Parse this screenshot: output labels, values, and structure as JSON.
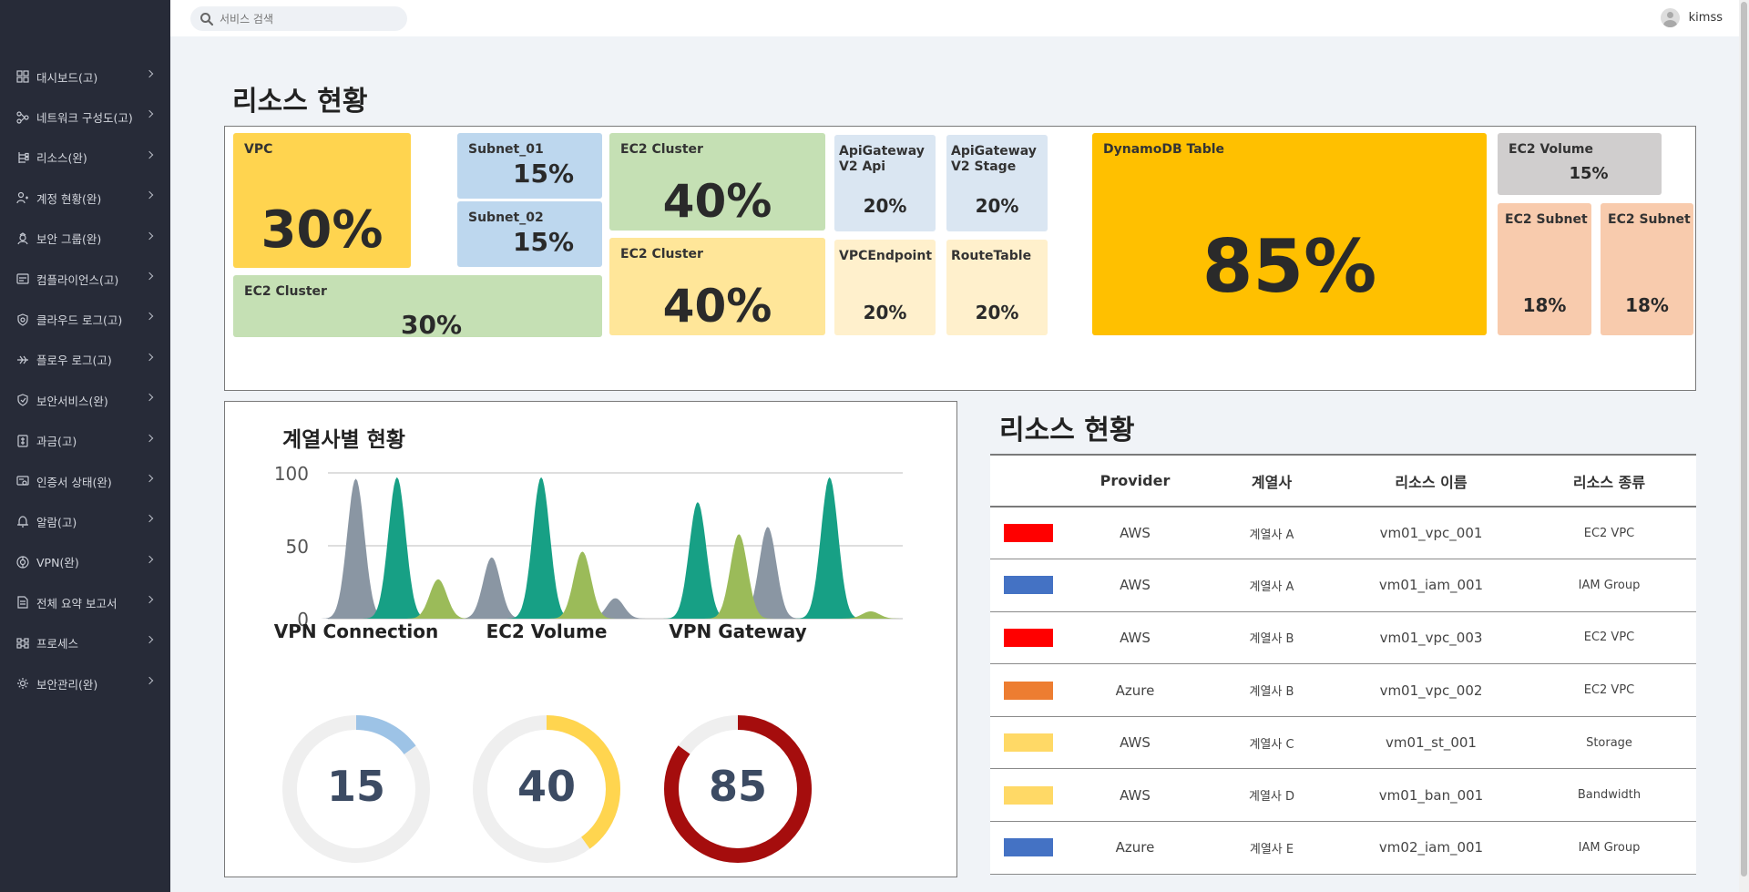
{
  "search": {
    "placeholder": "서비스 검색"
  },
  "user": {
    "name": "kimss"
  },
  "sidebar": {
    "items": [
      {
        "label": "대시보드(고)",
        "icon": "dashboard-icon"
      },
      {
        "label": "네트워크 구성도(고)",
        "icon": "network-icon"
      },
      {
        "label": "리소스(완)",
        "icon": "resource-tree-icon"
      },
      {
        "label": "계정 현황(완)",
        "icon": "users-icon"
      },
      {
        "label": "보안 그룹(완)",
        "icon": "security-group-icon"
      },
      {
        "label": "컴플라이언스(고)",
        "icon": "compliance-icon"
      },
      {
        "label": "클라우드 로그(고)",
        "icon": "cloud-log-icon"
      },
      {
        "label": "플로우 로그(고)",
        "icon": "flow-log-icon"
      },
      {
        "label": "보안서비스(완)",
        "icon": "shield-icon"
      },
      {
        "label": "과금(고)",
        "icon": "billing-icon"
      },
      {
        "label": "인증서 상태(완)",
        "icon": "certificate-icon"
      },
      {
        "label": "알람(고)",
        "icon": "alarm-icon"
      },
      {
        "label": "VPN(완)",
        "icon": "vpn-icon"
      },
      {
        "label": "전체 요약 보고서",
        "icon": "report-icon"
      },
      {
        "label": "프로세스",
        "icon": "process-icon"
      },
      {
        "label": "보안관리(완)",
        "icon": "gear-icon"
      }
    ]
  },
  "treemap": {
    "title": "리소스 현황",
    "tiles": [
      {
        "label": "VPC",
        "value": "30%",
        "color": "#ffd44f"
      },
      {
        "label": "Subnet_01",
        "value": "15%",
        "color": "#bdd7ee"
      },
      {
        "label": "Subnet_02",
        "value": "15%",
        "color": "#bdd7ee"
      },
      {
        "label": "EC2 Cluster",
        "value": "30%",
        "color": "#c5e0b4"
      },
      {
        "label": "EC2 Cluster",
        "value": "40%",
        "color": "#c5e0b4"
      },
      {
        "label": "EC2 Cluster",
        "value": "40%",
        "color": "#ffe699"
      },
      {
        "label": "ApiGateway V2 Api",
        "value": "20%",
        "color": "#dae6f2"
      },
      {
        "label": "ApiGateway V2 Stage",
        "value": "20%",
        "color": "#dae6f2"
      },
      {
        "label": "VPCEndpoint",
        "value": "20%",
        "color": "#fff0cc"
      },
      {
        "label": "RouteTable",
        "value": "20%",
        "color": "#fff0cc"
      },
      {
        "label": "DynamoDB Table",
        "value": "85%",
        "color": "#ffc000"
      },
      {
        "label": "EC2 Volume",
        "value": "15%",
        "color": "#d0cece"
      },
      {
        "label": "EC2 Subnet",
        "value": "18%",
        "color": "#f8cbad"
      },
      {
        "label": "EC2 Subnet",
        "value": "18%",
        "color": "#f8cbad"
      }
    ]
  },
  "chart_data": {
    "type": "area",
    "title": "계열사별 현황",
    "ylim": [
      0,
      100
    ],
    "y_ticks": [
      "100",
      "50",
      "0"
    ],
    "grid": true,
    "series": [
      {
        "color": "#8a96a3",
        "peaks": [
          [
            0.5,
            96
          ],
          [
            3.8,
            42
          ],
          [
            6.8,
            14
          ],
          [
            10.5,
            63
          ]
        ]
      },
      {
        "color": "#17a085",
        "peaks": [
          [
            1.5,
            97
          ],
          [
            5.0,
            97
          ],
          [
            8.8,
            80
          ],
          [
            12.0,
            97
          ]
        ]
      },
      {
        "color": "#9bbb59",
        "peaks": [
          [
            2.5,
            27
          ],
          [
            6.0,
            46
          ],
          [
            9.8,
            58
          ],
          [
            13.0,
            5
          ]
        ]
      }
    ]
  },
  "donuts": [
    {
      "title": "VPN Connection",
      "value": 15,
      "label": "15",
      "color": "#9dc3e6"
    },
    {
      "title": "EC2 Volume",
      "value": 40,
      "label": "40",
      "color": "#ffd54f"
    },
    {
      "title": "VPN Gateway",
      "value": 85,
      "label": "85",
      "color": "#a50d0d"
    }
  ],
  "table": {
    "title": "리소스 현황",
    "headers": [
      "",
      "Provider",
      "계열사",
      "리소스 이름",
      "리소스 종류"
    ],
    "rows": [
      {
        "color": "#ff0000",
        "provider": "AWS",
        "affiliate": "계열사 A",
        "name": "vm01_vpc_001",
        "type": "EC2 VPC"
      },
      {
        "color": "#4472c4",
        "provider": "AWS",
        "affiliate": "계열사 A",
        "name": "vm01_iam_001",
        "type": "IAM Group"
      },
      {
        "color": "#ff0000",
        "provider": "AWS",
        "affiliate": "계열사 B",
        "name": "vm01_vpc_003",
        "type": "EC2 VPC"
      },
      {
        "color": "#ed7d31",
        "provider": "Azure",
        "affiliate": "계열사 B",
        "name": "vm01_vpc_002",
        "type": "EC2 VPC"
      },
      {
        "color": "#ffd966",
        "provider": "AWS",
        "affiliate": "계열사 C",
        "name": "vm01_st_001",
        "type": "Storage"
      },
      {
        "color": "#ffd966",
        "provider": "AWS",
        "affiliate": "계열사 D",
        "name": "vm01_ban_001",
        "type": "Bandwidth"
      },
      {
        "color": "#4472c4",
        "provider": "Azure",
        "affiliate": "계열사 E",
        "name": "vm02_iam_001",
        "type": "IAM Group"
      }
    ]
  }
}
